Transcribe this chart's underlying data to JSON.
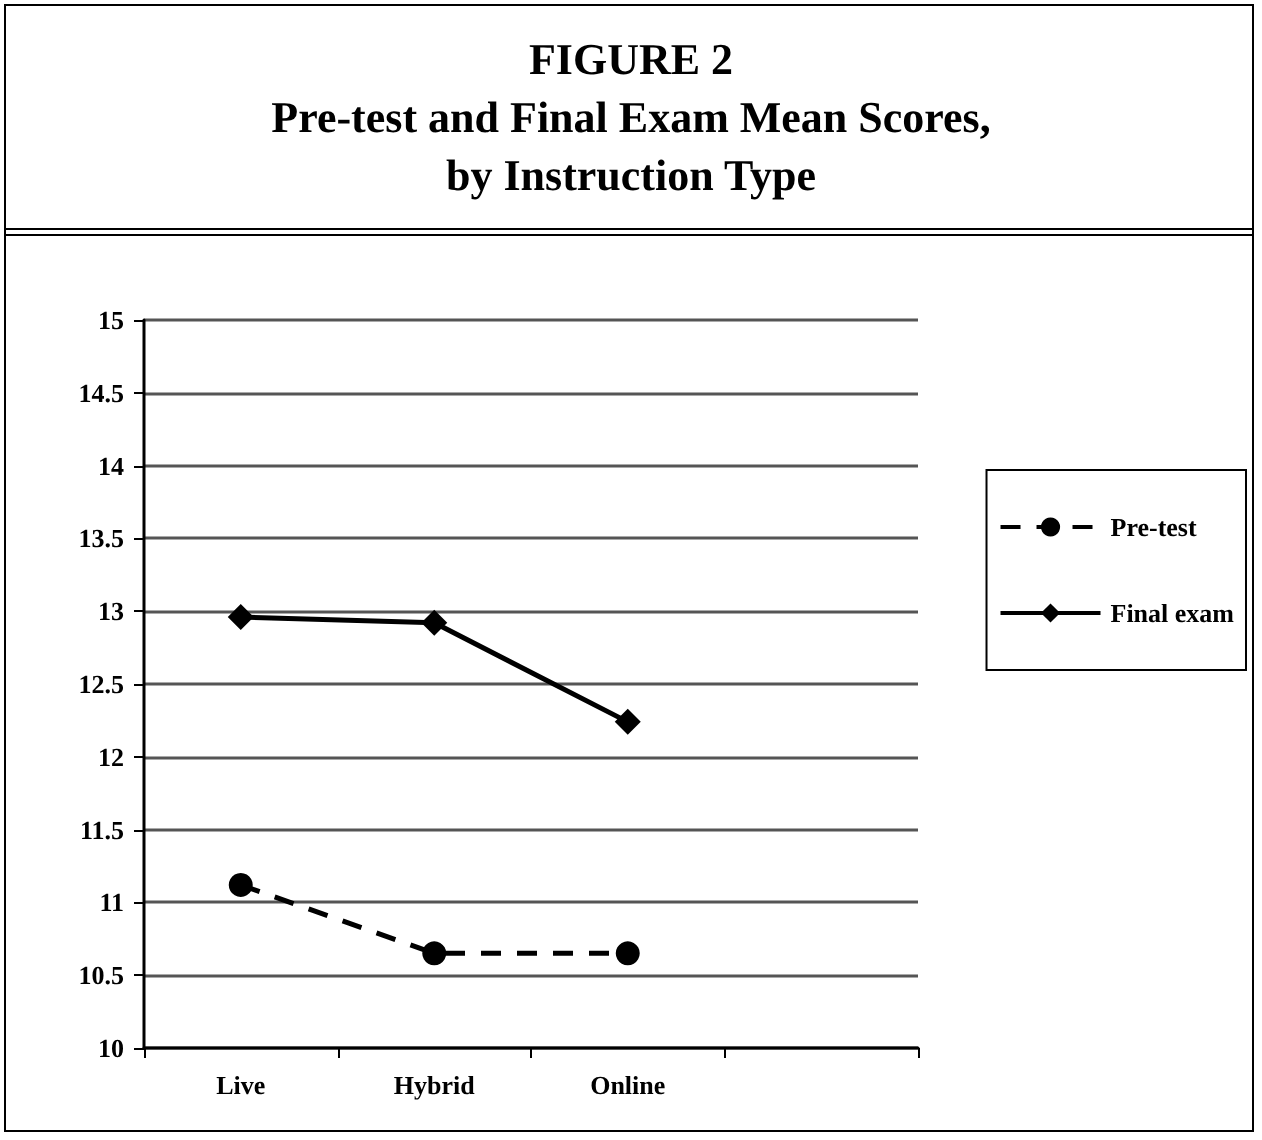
{
  "chart_data": {
    "type": "line",
    "title": "FIGURE 2\nPre-test and Final Exam Mean Scores,\nby Instruction Type",
    "categories": [
      "Live",
      "Hybrid",
      "Online",
      null
    ],
    "series": [
      {
        "name": "Pre-test",
        "color": "#000000",
        "values": [
          11.12,
          10.65,
          10.65,
          null
        ],
        "marker": "circle",
        "line_style": "dashed"
      },
      {
        "name": "Final exam",
        "color": "#000000",
        "values": [
          12.96,
          12.92,
          12.24,
          null
        ],
        "marker": "diamond",
        "line_style": "solid"
      }
    ],
    "ylim": [
      10,
      15
    ],
    "yticks": [
      10,
      10.5,
      11,
      11.5,
      12,
      12.5,
      13,
      13.5,
      14,
      14.5,
      15
    ],
    "grid": "y",
    "legend": "right"
  }
}
